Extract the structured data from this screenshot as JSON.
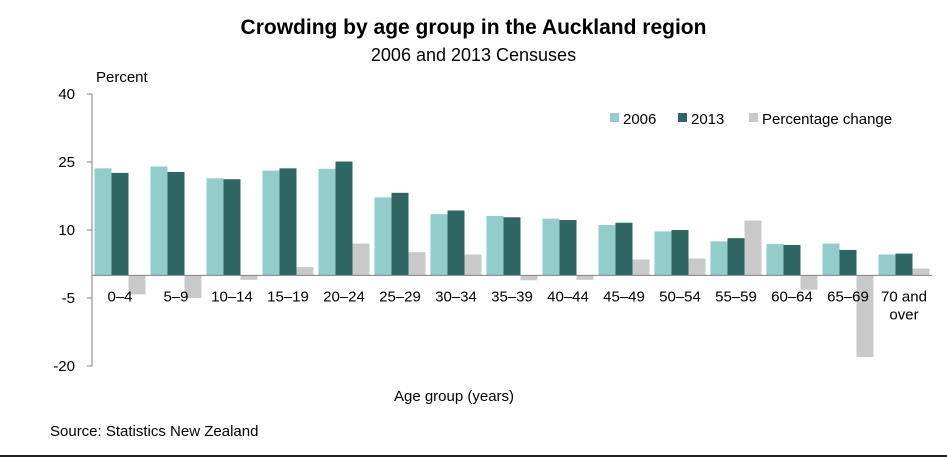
{
  "chart_data": {
    "type": "bar",
    "title": "Crowding by age group in the Auckland region",
    "subtitle": "2006 and 2013 Censuses",
    "ylabel": "Percent",
    "xlabel": "Age group (years)",
    "ylim": [
      -20,
      40
    ],
    "yticks": [
      40,
      25,
      10,
      -5,
      -20
    ],
    "categories": [
      "0–4",
      "5–9",
      "10–14",
      "15–19",
      "20–24",
      "25–29",
      "30–34",
      "35–39",
      "40–44",
      "45–49",
      "50–54",
      "55–59",
      "60–64",
      "65–69",
      "70 and over"
    ],
    "series": [
      {
        "name": "2006",
        "color": "#92CDCB",
        "values": [
          23.6,
          24.0,
          21.4,
          23.1,
          23.5,
          17.2,
          13.5,
          13.1,
          12.5,
          11.1,
          9.7,
          7.5,
          6.9,
          7.0,
          4.6
        ]
      },
      {
        "name": "2013",
        "color": "#2E6663",
        "values": [
          22.6,
          22.8,
          21.2,
          23.6,
          25.1,
          18.2,
          14.3,
          12.8,
          12.2,
          11.6,
          10.0,
          8.2,
          6.7,
          5.6,
          4.8
        ]
      },
      {
        "name": "Percentage change",
        "color": "#C9C9C9",
        "values": [
          -4.2,
          -5.0,
          -1.0,
          1.8,
          7.0,
          5.1,
          4.6,
          -1.1,
          -1.0,
          3.5,
          3.7,
          12.1,
          -3.2,
          -18.0,
          1.5
        ]
      }
    ],
    "legend_position": "top-right",
    "grid": false
  },
  "source": "Source: Statistics New Zealand"
}
